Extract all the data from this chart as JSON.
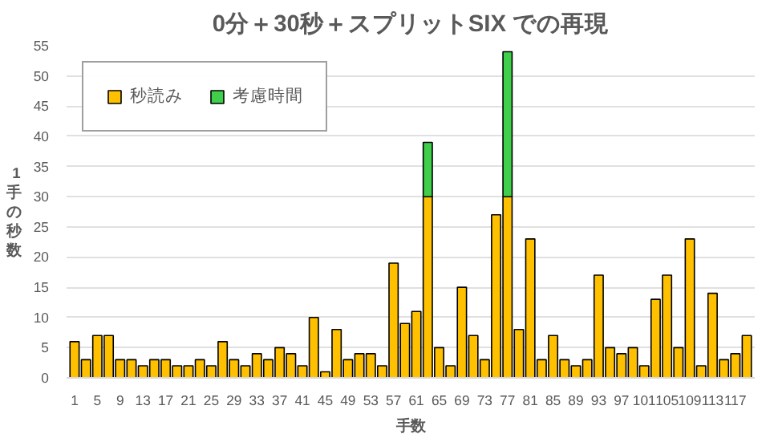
{
  "chart_data": {
    "type": "bar",
    "title": "0分＋30秒＋スプリットSIX での再現",
    "xlabel": "手数",
    "ylabel": "1手の秒数",
    "categories": [
      "1",
      null,
      "5",
      null,
      "9",
      null,
      "13",
      null,
      "17",
      null,
      "21",
      null,
      "25",
      null,
      "29",
      null,
      "33",
      null,
      "37",
      null,
      "41",
      null,
      "45",
      null,
      "49",
      null,
      "53",
      null,
      "57",
      null,
      "61",
      null,
      "65",
      null,
      "69",
      null,
      "73",
      null,
      "77",
      null,
      "81",
      null,
      "85",
      null,
      "89",
      null,
      "93",
      null,
      "97",
      null,
      "101",
      null,
      "105",
      null,
      "109",
      null,
      "113",
      null,
      "117",
      null
    ],
    "stacked": true,
    "series": [
      {
        "name": "秒読み",
        "color": "#ffc000",
        "values": [
          6,
          3,
          7,
          7,
          3,
          3,
          2,
          3,
          3,
          2,
          2,
          3,
          2,
          6,
          3,
          2,
          4,
          3,
          5,
          4,
          2,
          10,
          1,
          8,
          3,
          4,
          4,
          2,
          19,
          9,
          11,
          30,
          5,
          2,
          15,
          7,
          3,
          27,
          30,
          8,
          23,
          3,
          7,
          3,
          2,
          3,
          17,
          5,
          4,
          5,
          2,
          13,
          17,
          5,
          23,
          2,
          14,
          3,
          4,
          7
        ]
      },
      {
        "name": "考慮時間",
        "color": "#3fcf4a",
        "values": [
          null,
          null,
          null,
          null,
          null,
          null,
          null,
          null,
          null,
          null,
          null,
          null,
          null,
          null,
          null,
          null,
          null,
          null,
          null,
          null,
          null,
          null,
          null,
          null,
          null,
          null,
          null,
          null,
          null,
          null,
          null,
          9,
          null,
          null,
          null,
          null,
          null,
          null,
          24,
          null,
          null,
          null,
          null,
          null,
          null,
          null,
          null,
          null,
          null,
          null,
          null,
          null,
          null,
          null,
          null,
          null,
          null,
          null,
          null,
          null
        ]
      }
    ],
    "ylim": [
      0,
      55
    ],
    "yticks": [
      0,
      5,
      10,
      15,
      20,
      25,
      30,
      35,
      40,
      45,
      50,
      55
    ],
    "grid": "y",
    "legend": "top left"
  }
}
